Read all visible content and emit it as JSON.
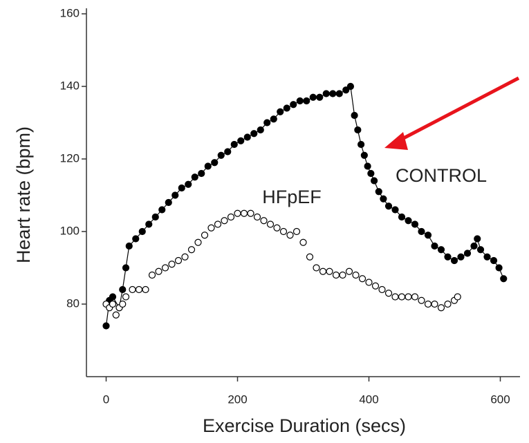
{
  "chart_data": {
    "type": "scatter",
    "y_label": "Heart rate (bpm)",
    "x_label": "Exercise Duration (secs)",
    "annotations": [
      "HFpEF",
      "CONTROL"
    ],
    "xlim": [
      -30,
      630
    ],
    "xticks": [
      0,
      200,
      400,
      600
    ],
    "ylim": [
      60,
      160
    ],
    "yticks": [
      80,
      100,
      120,
      140,
      160
    ],
    "series": [
      {
        "name": "CONTROL",
        "color": "#000000",
        "fill": "#000000",
        "line": true,
        "x": [
          0,
          5,
          10,
          20,
          25,
          30,
          35,
          45,
          55,
          65,
          75,
          85,
          95,
          105,
          115,
          125,
          135,
          145,
          155,
          165,
          175,
          185,
          195,
          205,
          215,
          225,
          235,
          245,
          255,
          265,
          275,
          285,
          295,
          305,
          315,
          325,
          335,
          345,
          355,
          365,
          372,
          378,
          383,
          388,
          393,
          398,
          403,
          408,
          415,
          422,
          430,
          440,
          450,
          460,
          470,
          480,
          490,
          500,
          510,
          520,
          530,
          540,
          550,
          560,
          565,
          570,
          580,
          590,
          598,
          605
        ],
        "values": [
          74,
          81,
          82,
          79,
          84,
          90,
          96,
          98,
          100,
          102,
          104,
          106,
          108,
          110,
          112,
          113,
          115,
          116,
          118,
          119,
          121,
          122,
          124,
          125,
          126,
          127,
          128,
          130,
          131,
          133,
          134,
          135,
          136,
          136,
          137,
          137,
          138,
          138,
          138,
          139,
          140,
          132,
          128,
          124,
          121,
          118,
          116,
          114,
          111,
          109,
          107,
          106,
          104,
          103,
          102,
          100,
          99,
          96,
          95,
          93,
          92,
          93,
          94,
          96,
          98,
          95,
          93,
          92,
          90,
          87
        ]
      },
      {
        "name": "HFpEF",
        "color": "#000000",
        "fill": "#ffffff",
        "line": false,
        "x": [
          0,
          5,
          10,
          15,
          20,
          25,
          30,
          40,
          50,
          60,
          70,
          80,
          90,
          100,
          110,
          120,
          130,
          140,
          150,
          160,
          170,
          180,
          190,
          200,
          210,
          220,
          230,
          240,
          250,
          260,
          270,
          280,
          290,
          300,
          310,
          320,
          330,
          340,
          350,
          360,
          370,
          380,
          390,
          400,
          410,
          420,
          430,
          440,
          450,
          460,
          470,
          480,
          490,
          500,
          510,
          520,
          530,
          535
        ],
        "values": [
          80,
          79,
          80,
          77,
          79,
          80,
          82,
          84,
          84,
          84,
          88,
          89,
          90,
          91,
          92,
          93,
          95,
          97,
          99,
          101,
          102,
          103,
          104,
          105,
          105,
          105,
          104,
          103,
          102,
          101,
          100,
          99,
          100,
          97,
          93,
          90,
          89,
          89,
          88,
          88,
          89,
          88,
          87,
          86,
          85,
          84,
          83,
          82,
          82,
          82,
          82,
          81,
          80,
          80,
          79,
          80,
          81,
          82
        ]
      }
    ]
  }
}
